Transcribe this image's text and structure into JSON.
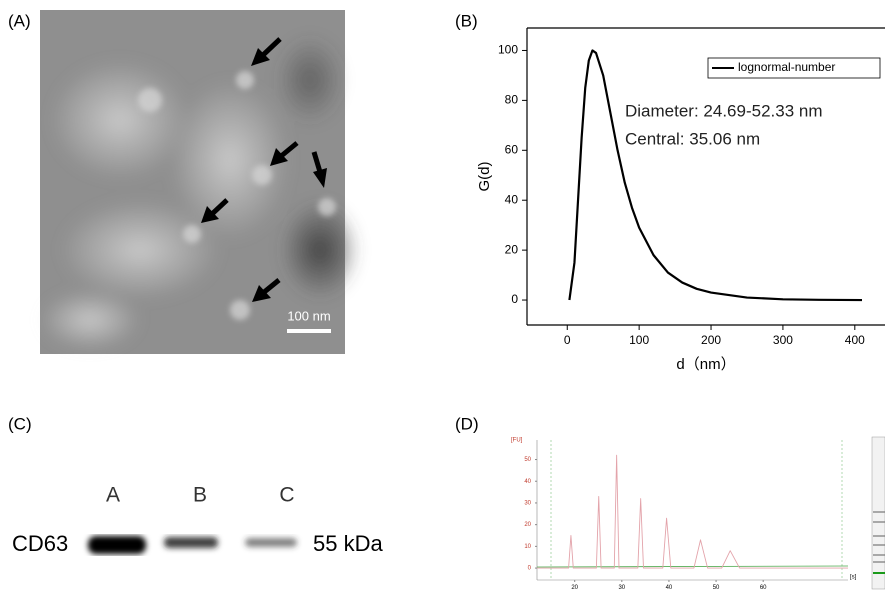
{
  "panel_labels": [
    "(A)",
    "(B)",
    "(C)",
    "(D)"
  ],
  "tem_image": {
    "scale_bar": "100 nm"
  },
  "western_blot": {
    "lanes": [
      "A",
      "B",
      "C"
    ],
    "protein": "CD63",
    "size": "55 kDa"
  },
  "chart_data": [
    {
      "type": "line",
      "xlabel": "d（nm）",
      "ylabel": "G(d)",
      "annotations": [
        "Diameter: 24.69-52.33 nm",
        "Central: 35.06 nm"
      ],
      "x": [
        3,
        10,
        15,
        20,
        25,
        30,
        35,
        40,
        50,
        60,
        70,
        80,
        90,
        100,
        120,
        140,
        160,
        180,
        200,
        250,
        300,
        350,
        410
      ],
      "series": [
        {
          "name": "lognormal-number",
          "color": "#000000",
          "values": [
            0,
            15,
            40,
            65,
            85,
            96,
            100,
            99,
            90,
            75,
            60,
            47,
            37,
            29,
            18,
            11,
            7,
            4.5,
            3,
            1,
            0.3,
            0.1,
            0
          ]
        }
      ],
      "xlim": [
        -56,
        442
      ],
      "ylim": [
        -10,
        109
      ],
      "xticks": [
        0,
        100,
        200,
        300,
        400
      ],
      "yticks": [
        0,
        20,
        40,
        60,
        80,
        100
      ],
      "legend": "upper right"
    },
    {
      "type": "line",
      "xlabel": "[s]",
      "ylabel": "[FU]",
      "color": "#e3a3aa",
      "x": [
        12,
        18.7,
        19.2,
        19.7,
        24.6,
        25.1,
        25.6,
        28.4,
        28.9,
        29.4,
        33.4,
        34,
        34.6,
        38.7,
        39.5,
        40.4,
        45.3,
        46.7,
        48.2,
        51.2,
        53,
        55,
        78
      ],
      "values": [
        0,
        0,
        15,
        0,
        0,
        33,
        0,
        0,
        52,
        0,
        0,
        32,
        0,
        0,
        23,
        0,
        0,
        13,
        0,
        0,
        8,
        0,
        0
      ],
      "xlim": [
        12,
        78
      ],
      "ylim": [
        -5.5,
        59
      ],
      "xticks": [
        20,
        30,
        40,
        50,
        60
      ],
      "yticks": [
        0,
        10,
        20,
        30,
        40,
        50
      ]
    }
  ]
}
